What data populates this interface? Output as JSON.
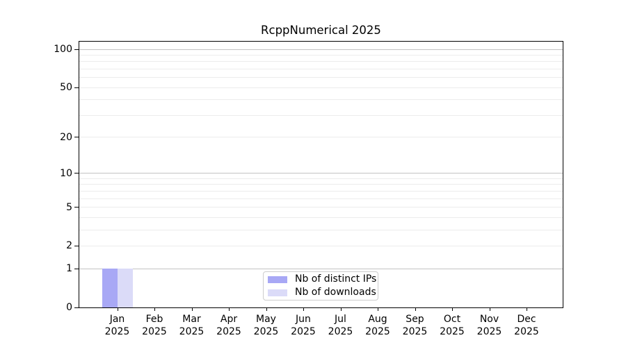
{
  "figure": {
    "title": "RcppNumerical 2025"
  },
  "colors": {
    "distinct_ips_bar": "#a8a8f5",
    "downloads_bar": "#dbdbf8",
    "grid_major": "#c3c3c3",
    "grid_minor": "#ececec",
    "spine": "#000000",
    "legend_border": "#cccccc",
    "background": "#ffffff",
    "text": "#000000"
  },
  "chart_data": {
    "type": "bar",
    "title": "RcppNumerical 2025",
    "xlabel": "",
    "ylabel": "",
    "categories": [
      "Jan 2025",
      "Feb 2025",
      "Mar 2025",
      "Apr 2025",
      "May 2025",
      "Jun 2025",
      "Jul 2025",
      "Aug 2025",
      "Sep 2025",
      "Oct 2025",
      "Nov 2025",
      "Dec 2025"
    ],
    "series": [
      {
        "name": "Nb of distinct IPs",
        "color": "#a8a8f5",
        "values": [
          1,
          0,
          0,
          0,
          0,
          0,
          0,
          0,
          0,
          0,
          0,
          0
        ]
      },
      {
        "name": "Nb of downloads",
        "color": "#dbdbf8",
        "values": [
          1,
          0,
          0,
          0,
          0,
          0,
          0,
          0,
          0,
          0,
          0,
          0
        ]
      }
    ],
    "yscale": "log1p",
    "ylim": [
      0,
      115
    ],
    "yticks": [
      0,
      1,
      2,
      5,
      10,
      20,
      50,
      100
    ],
    "grid": "horizontal",
    "grid_major": [
      1,
      10,
      100
    ],
    "grid_minor": [
      2,
      3,
      4,
      5,
      6,
      7,
      8,
      9,
      20,
      30,
      40,
      50,
      60,
      70,
      80,
      90
    ],
    "legend_position": "lower-center"
  }
}
